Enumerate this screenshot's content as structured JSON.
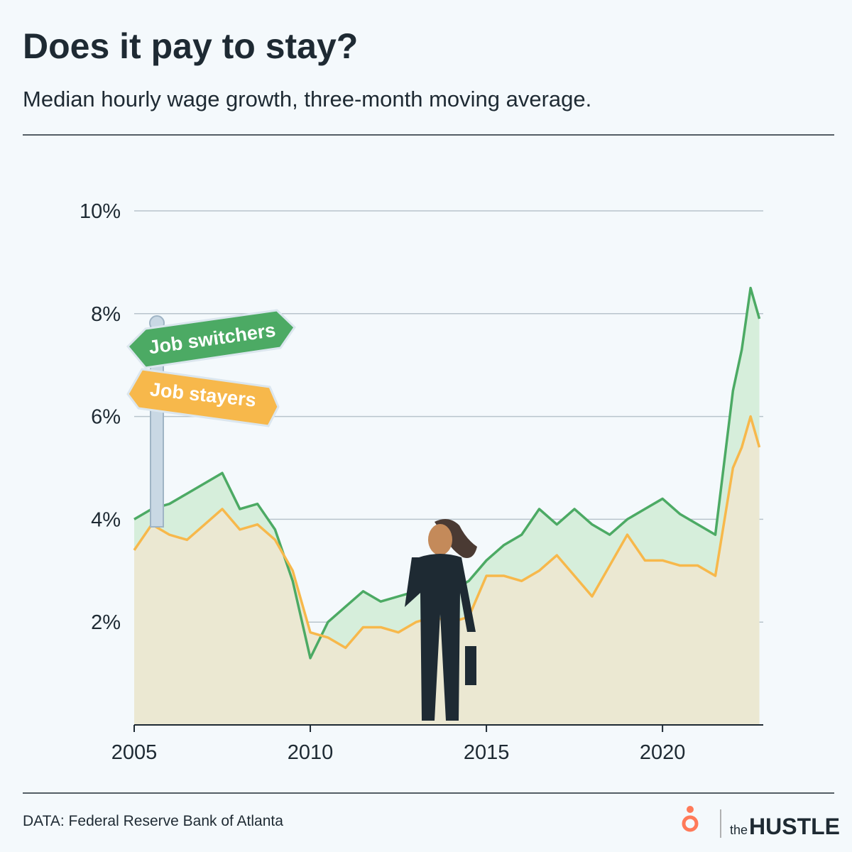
{
  "chart_data": {
    "type": "area-line",
    "title": "Does it pay to stay?",
    "subtitle": "Median hourly wage growth, three-month moving average.",
    "source": "DATA: Federal Reserve Bank of Atlanta",
    "brand": {
      "small": "the",
      "big": "HUSTLE"
    },
    "x": [
      2005,
      2005.5,
      2006,
      2006.5,
      2007,
      2007.5,
      2008,
      2008.5,
      2009,
      2009.5,
      2010,
      2010.5,
      2011,
      2011.5,
      2012,
      2012.5,
      2013,
      2013.5,
      2014,
      2014.5,
      2015,
      2015.5,
      2016,
      2016.5,
      2017,
      2017.5,
      2018,
      2018.5,
      2019,
      2019.5,
      2020,
      2020.5,
      2021,
      2021.5,
      2022,
      2022.25,
      2022.5,
      2022.75
    ],
    "series": [
      {
        "name": "Job switchers",
        "color": "#4caa64",
        "fill": "#d6eedb",
        "values": [
          4.0,
          4.2,
          4.3,
          4.5,
          4.7,
          4.9,
          4.2,
          4.3,
          3.8,
          2.8,
          1.3,
          2.0,
          2.3,
          2.6,
          2.4,
          2.5,
          2.6,
          2.8,
          2.6,
          2.8,
          3.2,
          3.5,
          3.7,
          4.2,
          3.9,
          4.2,
          3.9,
          3.7,
          4.0,
          4.2,
          4.4,
          4.1,
          3.9,
          3.7,
          6.5,
          7.3,
          8.5,
          7.9
        ]
      },
      {
        "name": "Job stayers",
        "color": "#f7b84b",
        "fill": "#ebe8d2",
        "values": [
          3.4,
          3.9,
          3.7,
          3.6,
          3.9,
          4.2,
          3.8,
          3.9,
          3.6,
          3.0,
          1.8,
          1.7,
          1.5,
          1.9,
          1.9,
          1.8,
          2.0,
          2.1,
          2.0,
          2.1,
          2.9,
          2.9,
          2.8,
          3.0,
          3.3,
          2.9,
          2.5,
          3.1,
          3.7,
          3.2,
          3.2,
          3.1,
          3.1,
          2.9,
          5.0,
          5.4,
          6.0,
          5.4
        ]
      }
    ],
    "xlim": [
      2005,
      2022.86
    ],
    "xticks": [
      2005,
      2010,
      2015,
      2020
    ],
    "ylim": [
      0,
      10
    ],
    "yticks": [
      {
        "value": 2,
        "label": "2%"
      },
      {
        "value": 4,
        "label": "4%"
      },
      {
        "value": 6,
        "label": "6%"
      },
      {
        "value": 8,
        "label": "8%"
      },
      {
        "value": 10,
        "label": "10%"
      }
    ],
    "grid": true
  }
}
